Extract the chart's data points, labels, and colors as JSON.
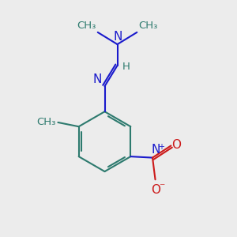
{
  "bg_color": "#ececec",
  "bond_color": "#2d7a6e",
  "n_color": "#1a1acc",
  "o_color": "#cc1a1a",
  "h_color": "#2d7a6e",
  "label_fontsize": 11,
  "small_fontsize": 9.5,
  "line_width": 1.5,
  "fig_size": [
    3.0,
    3.0
  ],
  "dpi": 100,
  "xlim": [
    0,
    10
  ],
  "ylim": [
    0,
    10
  ]
}
